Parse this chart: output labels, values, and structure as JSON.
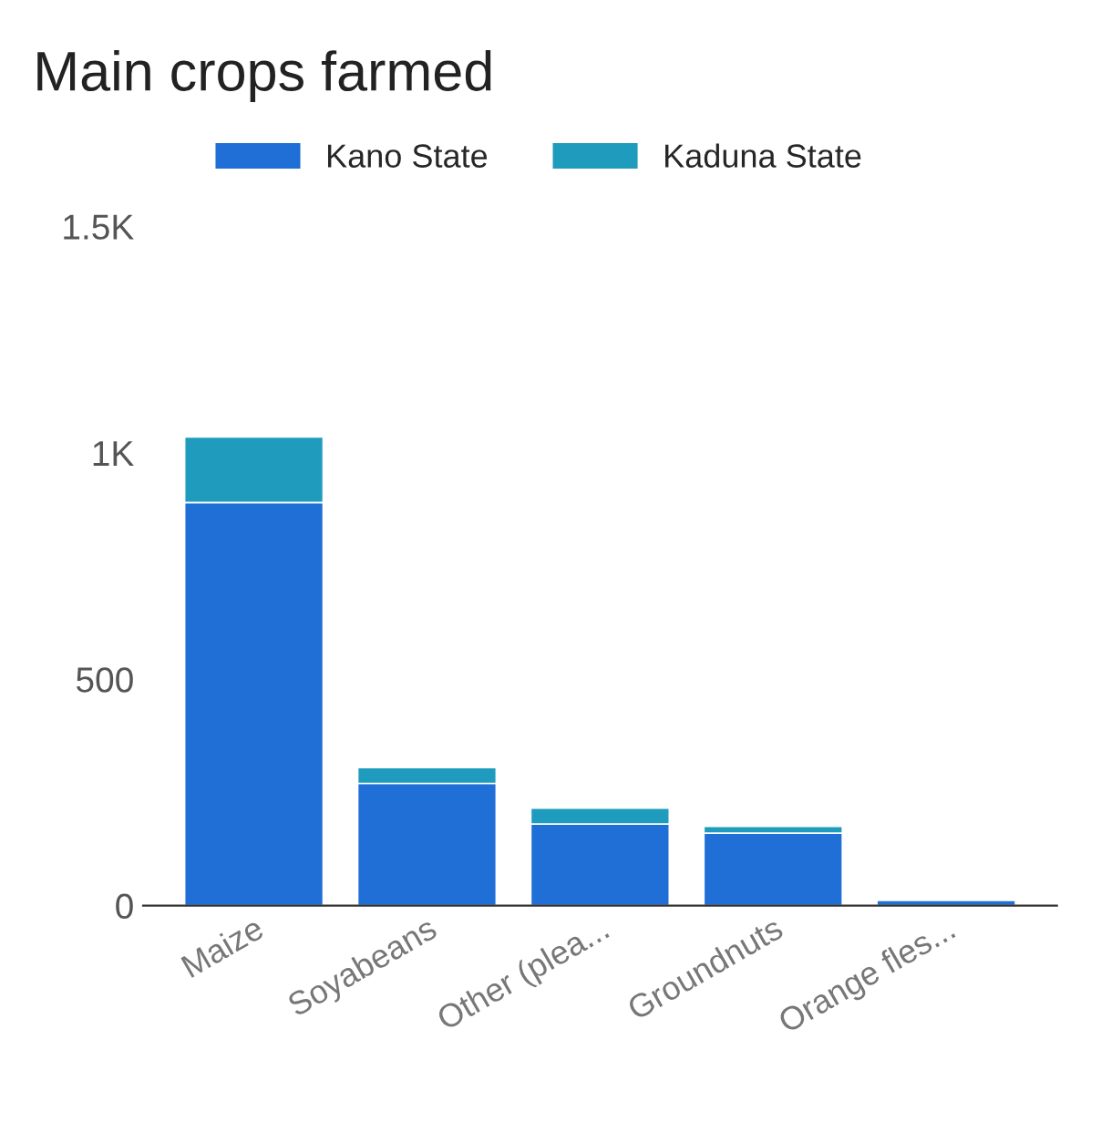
{
  "chart_data": {
    "type": "bar",
    "title": "Main crops farmed",
    "stacked": true,
    "categories": [
      "Maize",
      "Soyabeans",
      "Other (plea...",
      "Groundnuts",
      "Orange fles..."
    ],
    "series": [
      {
        "name": "Kano State",
        "color": "#1f6fd6",
        "values": [
          890,
          270,
          180,
          160,
          12
        ]
      },
      {
        "name": "Kaduna State",
        "color": "#1f9bbd",
        "values": [
          145,
          35,
          35,
          15,
          null
        ]
      }
    ],
    "ylim": [
      0,
      1500
    ],
    "yticks": [
      0,
      500,
      {
        "value": 1000,
        "label": "1K"
      },
      {
        "value": 1500,
        "label": "1.5K"
      }
    ],
    "grid": false,
    "legend": "top left"
  }
}
